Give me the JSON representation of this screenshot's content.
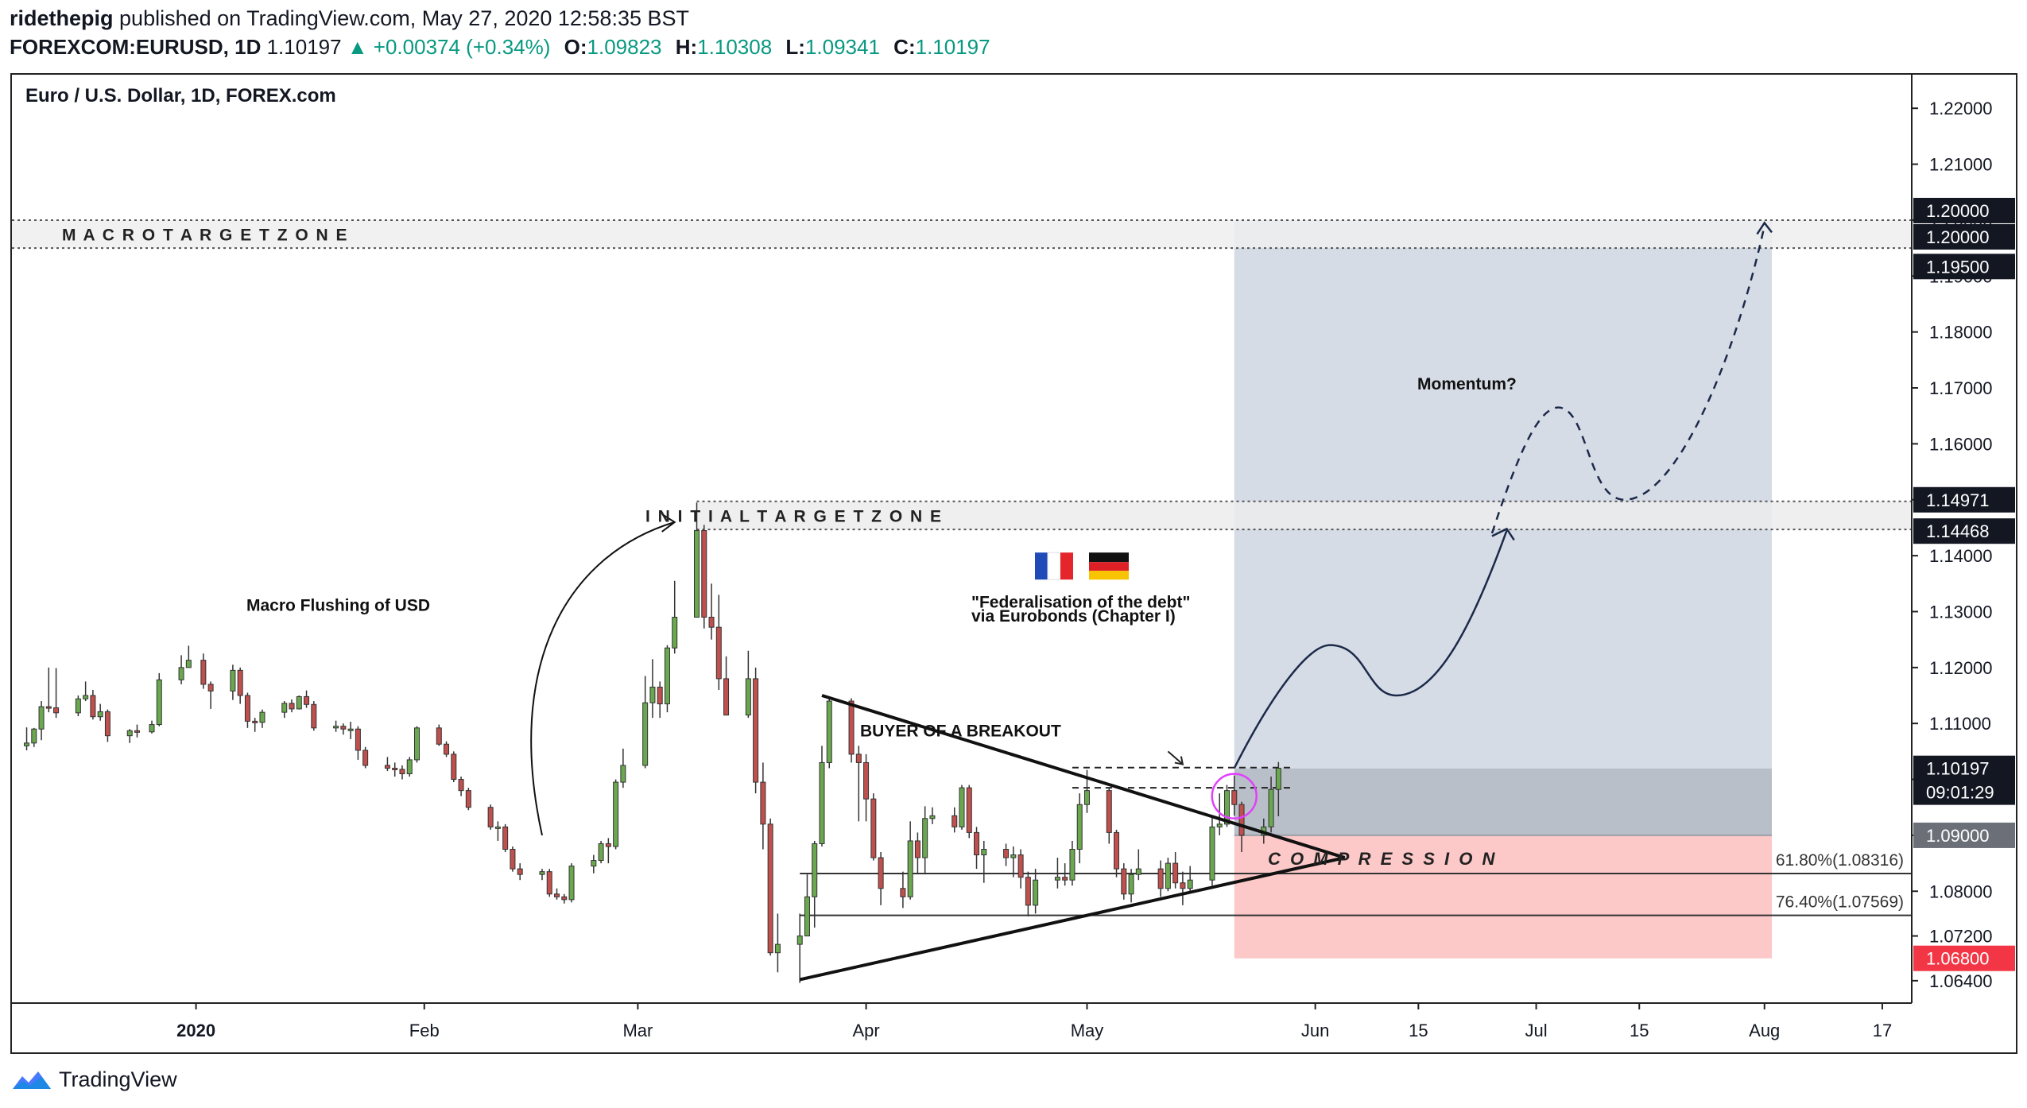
{
  "header": {
    "publisher": "ridethepig",
    "published_text": "published on TradingView.com, May 27, 2020 12:58:35 BST",
    "symbol": "FOREXCOM:EURUSD, 1D",
    "last": "1.10197",
    "change_arrow": "▲",
    "change": "+0.00374 (+0.34%)",
    "o_label": "O:",
    "o_value": "1.09823",
    "h_label": "H:",
    "h_value": "1.10308",
    "l_label": "L:",
    "l_value": "1.09341",
    "c_label": "C:",
    "c_value": "1.10197"
  },
  "footer": {
    "brand": "TradingView",
    "logo_icon": "tradingview-logo-icon"
  },
  "chart_data": {
    "type": "candlestick",
    "title": "Euro / U.S. Dollar, 1D, FOREX.com",
    "ylim": [
      1.06,
      1.226
    ],
    "y_ticks": [
      "1.22000",
      "1.21000",
      "1.20000",
      "1.19000",
      "1.18000",
      "1.17000",
      "1.16000",
      "1.15000",
      "1.14000",
      "1.13000",
      "1.12000",
      "1.11000",
      "1.10000",
      "1.09000",
      "1.08000",
      "1.07200",
      "1.06400"
    ],
    "x_tick_labels": [
      "2020",
      "Feb",
      "Mar",
      "Apr",
      "May",
      "Jun",
      "15",
      "Jul",
      "15",
      "Aug",
      "17"
    ],
    "x_tick_dates": [
      "2020-01-01",
      "2020-02-01",
      "2020-03-01",
      "2020-04-01",
      "2020-05-01",
      "2020-06-01",
      "2020-06-15",
      "2020-07-01",
      "2020-07-15",
      "2020-08-01",
      "2020-08-17"
    ],
    "x_range": [
      "2019-12-07",
      "2020-08-21"
    ],
    "grid": false,
    "colors": {
      "up": "#6aa84f",
      "down": "#c0504d",
      "profit_zone": "#d6dce6",
      "loss_zone": "#fcc8c8",
      "entry_zone": "#b9bfc9",
      "price_label": "#131722",
      "stop_label": "#f23645"
    },
    "price_labels": [
      {
        "value": "1.20000",
        "style": "dark"
      },
      {
        "value": "1.20000",
        "style": "dark"
      },
      {
        "value": "1.19500",
        "style": "dark"
      },
      {
        "value": "1.14971",
        "style": "dark"
      },
      {
        "value": "1.14468",
        "style": "dark"
      },
      {
        "value": "1.10197",
        "style": "dark"
      },
      {
        "value": "09:01:29",
        "style": "dark"
      },
      {
        "value": "1.09000",
        "style": "grey"
      },
      {
        "value": "1.06800",
        "style": "red"
      }
    ],
    "zones": {
      "macro_target_label": "M A C R O     T A R G E T     Z O N E",
      "macro_target_range": [
        1.195,
        1.2
      ],
      "initial_target_label": "I N I T I A L     T A R G E T     Z O N E",
      "initial_target_range": [
        1.14468,
        1.14971
      ],
      "entry": 1.09,
      "stop": 1.068,
      "target": 1.2
    },
    "fib_levels": [
      {
        "label": "61.80%(1.08316)",
        "value": 1.08316
      },
      {
        "label": "76.40%(1.07569)",
        "value": 1.07569
      }
    ],
    "annotations": [
      {
        "text": "Macro Flushing of USD"
      },
      {
        "text": "\"Federalisation of the debt\""
      },
      {
        "text": "via Eurobonds (Chapter I)"
      },
      {
        "text": "BUYER OF A BREAKOUT"
      },
      {
        "text": "Momentum?"
      },
      {
        "text": "C O M P R E S S I O N"
      }
    ],
    "flags": [
      "france-flag-icon",
      "germany-flag-icon"
    ],
    "candles": [
      [
        "2019-12-09",
        1.106,
        1.1093,
        1.1052,
        1.1065
      ],
      [
        "2019-12-10",
        1.1065,
        1.1092,
        1.1058,
        1.109
      ],
      [
        "2019-12-11",
        1.109,
        1.114,
        1.107,
        1.113
      ],
      [
        "2019-12-12",
        1.113,
        1.12,
        1.112,
        1.1128
      ],
      [
        "2019-12-13",
        1.1128,
        1.1199,
        1.111,
        1.1119
      ],
      [
        "2019-12-16",
        1.1119,
        1.115,
        1.1113,
        1.1144
      ],
      [
        "2019-12-17",
        1.1144,
        1.1175,
        1.114,
        1.115
      ],
      [
        "2019-12-18",
        1.115,
        1.116,
        1.1107,
        1.1112
      ],
      [
        "2019-12-19",
        1.1112,
        1.1135,
        1.1105,
        1.1121
      ],
      [
        "2019-12-20",
        1.1121,
        1.1125,
        1.1067,
        1.1078
      ],
      [
        "2019-12-23",
        1.1078,
        1.109,
        1.1065,
        1.1087
      ],
      [
        "2019-12-24",
        1.1087,
        1.1098,
        1.1075,
        1.1085
      ],
      [
        "2019-12-26",
        1.1085,
        1.1105,
        1.1082,
        1.1098
      ],
      [
        "2019-12-27",
        1.1098,
        1.119,
        1.1095,
        1.1178
      ],
      [
        "2019-12-30",
        1.1178,
        1.1222,
        1.117,
        1.12
      ],
      [
        "2019-12-31",
        1.12,
        1.1239,
        1.12,
        1.1213
      ],
      [
        "2020-01-02",
        1.1213,
        1.1225,
        1.1162,
        1.117
      ],
      [
        "2020-01-03",
        1.117,
        1.1175,
        1.1126,
        1.1158
      ],
      [
        "2020-01-06",
        1.1158,
        1.1205,
        1.1142,
        1.1195
      ],
      [
        "2020-01-07",
        1.1195,
        1.12,
        1.1135,
        1.115
      ],
      [
        "2020-01-08",
        1.115,
        1.1155,
        1.1092,
        1.1104
      ],
      [
        "2020-01-09",
        1.1104,
        1.111,
        1.1085,
        1.1102
      ],
      [
        "2020-01-10",
        1.1102,
        1.1125,
        1.1092,
        1.112
      ],
      [
        "2020-01-13",
        1.112,
        1.114,
        1.111,
        1.1136
      ],
      [
        "2020-01-14",
        1.1136,
        1.1143,
        1.112,
        1.1126
      ],
      [
        "2020-01-15",
        1.1126,
        1.115,
        1.1125,
        1.1148
      ],
      [
        "2020-01-16",
        1.1148,
        1.1159,
        1.1128,
        1.1134
      ],
      [
        "2020-01-17",
        1.1134,
        1.114,
        1.1087,
        1.1092
      ],
      [
        "2020-01-20",
        1.1092,
        1.1105,
        1.1085,
        1.1095
      ],
      [
        "2020-01-21",
        1.1095,
        1.11,
        1.108,
        1.109
      ],
      [
        "2020-01-22",
        1.109,
        1.1103,
        1.1072,
        1.109
      ],
      [
        "2020-01-23",
        1.109,
        1.1095,
        1.1035,
        1.1052
      ],
      [
        "2020-01-24",
        1.1052,
        1.1058,
        1.102,
        1.1025
      ],
      [
        "2020-01-27",
        1.1025,
        1.104,
        1.1015,
        1.102
      ],
      [
        "2020-01-28",
        1.102,
        1.103,
        1.1005,
        1.1018
      ],
      [
        "2020-01-29",
        1.1018,
        1.1025,
        1.1,
        1.101
      ],
      [
        "2020-01-30",
        1.101,
        1.104,
        1.1005,
        1.1035
      ],
      [
        "2020-01-31",
        1.1035,
        1.1095,
        1.103,
        1.1092
      ],
      [
        "2020-02-03",
        1.1092,
        1.1098,
        1.106,
        1.1063
      ],
      [
        "2020-02-04",
        1.1063,
        1.1068,
        1.104,
        1.1045
      ],
      [
        "2020-02-05",
        1.1045,
        1.105,
        1.0995,
        1.1
      ],
      [
        "2020-02-06",
        1.1,
        1.1005,
        1.097,
        1.098
      ],
      [
        "2020-02-07",
        1.098,
        1.0985,
        1.0945,
        1.095
      ],
      [
        "2020-02-10",
        1.095,
        1.0955,
        1.091,
        1.0915
      ],
      [
        "2020-02-11",
        1.0915,
        1.0925,
        1.089,
        1.0915
      ],
      [
        "2020-02-12",
        1.0915,
        1.092,
        1.087,
        1.0875
      ],
      [
        "2020-02-13",
        1.0875,
        1.088,
        1.0835,
        1.084
      ],
      [
        "2020-02-14",
        1.084,
        1.085,
        1.082,
        1.083
      ],
      [
        "2020-02-17",
        1.083,
        1.084,
        1.082,
        1.0835
      ],
      [
        "2020-02-18",
        1.0835,
        1.084,
        1.079,
        1.0795
      ],
      [
        "2020-02-19",
        1.0795,
        1.0805,
        1.0785,
        1.079
      ],
      [
        "2020-02-20",
        1.079,
        1.0795,
        1.0778,
        1.0785
      ],
      [
        "2020-02-21",
        1.0785,
        1.085,
        1.078,
        1.0845
      ],
      [
        "2020-02-24",
        1.0845,
        1.0865,
        1.0832,
        1.0855
      ],
      [
        "2020-02-25",
        1.0855,
        1.089,
        1.085,
        1.0885
      ],
      [
        "2020-02-26",
        1.0885,
        1.0895,
        1.085,
        1.088
      ],
      [
        "2020-02-27",
        1.088,
        1.1,
        1.0875,
        1.0995
      ],
      [
        "2020-02-28",
        1.0995,
        1.1055,
        1.0985,
        1.1025
      ],
      [
        "2020-03-02",
        1.1025,
        1.1185,
        1.102,
        1.1137
      ],
      [
        "2020-03-03",
        1.1137,
        1.1215,
        1.111,
        1.1165
      ],
      [
        "2020-03-04",
        1.1165,
        1.1175,
        1.111,
        1.1135
      ],
      [
        "2020-03-05",
        1.1135,
        1.124,
        1.112,
        1.1235
      ],
      [
        "2020-03-06",
        1.1235,
        1.1355,
        1.1225,
        1.129
      ],
      [
        "2020-03-09",
        1.129,
        1.1495,
        1.129,
        1.1445
      ],
      [
        "2020-03-10",
        1.1445,
        1.1455,
        1.127,
        1.129
      ],
      [
        "2020-03-11",
        1.129,
        1.135,
        1.125,
        1.1272
      ],
      [
        "2020-03-12",
        1.1272,
        1.133,
        1.116,
        1.118
      ],
      [
        "2020-03-13",
        1.118,
        1.122,
        1.112,
        1.1115
      ],
      [
        "2020-03-16",
        1.1115,
        1.123,
        1.111,
        1.118
      ],
      [
        "2020-03-17",
        1.118,
        1.12,
        1.0975,
        1.0995
      ],
      [
        "2020-03-18",
        1.0995,
        1.103,
        1.0875,
        1.092
      ],
      [
        "2020-03-19",
        1.092,
        1.093,
        1.0685,
        1.069
      ],
      [
        "2020-03-20",
        1.069,
        1.076,
        1.0655,
        1.0705
      ],
      [
        "2020-03-23",
        1.0705,
        1.076,
        1.0636,
        1.072
      ],
      [
        "2020-03-24",
        1.072,
        1.083,
        1.072,
        1.079
      ],
      [
        "2020-03-25",
        1.079,
        1.089,
        1.0735,
        1.0885
      ],
      [
        "2020-03-26",
        1.0885,
        1.106,
        1.088,
        1.103
      ],
      [
        "2020-03-27",
        1.103,
        1.1147,
        1.102,
        1.114
      ],
      [
        "2020-03-30",
        1.114,
        1.1145,
        1.103,
        1.1045
      ],
      [
        "2020-03-31",
        1.1045,
        1.106,
        1.0925,
        1.103
      ],
      [
        "2020-04-01",
        1.103,
        1.1045,
        1.0925,
        1.0965
      ],
      [
        "2020-04-02",
        1.0965,
        1.0975,
        1.0855,
        1.086
      ],
      [
        "2020-04-03",
        1.086,
        1.087,
        1.0775,
        1.0805
      ],
      [
        "2020-04-06",
        1.0805,
        1.0835,
        1.077,
        1.079
      ],
      [
        "2020-04-07",
        1.079,
        1.0925,
        1.0785,
        1.089
      ],
      [
        "2020-04-08",
        1.089,
        1.0905,
        1.083,
        1.086
      ],
      [
        "2020-04-09",
        1.086,
        1.0952,
        1.083,
        1.093
      ],
      [
        "2020-04-10",
        1.093,
        1.095,
        1.092,
        1.0935
      ],
      [
        "2020-04-13",
        1.0935,
        1.095,
        1.0905,
        1.0915
      ],
      [
        "2020-04-14",
        1.0915,
        1.099,
        1.091,
        1.0985
      ],
      [
        "2020-04-15",
        1.0985,
        1.099,
        1.0895,
        1.0905
      ],
      [
        "2020-04-16",
        1.0905,
        1.0915,
        1.084,
        1.0865
      ],
      [
        "2020-04-17",
        1.0865,
        1.089,
        1.0815,
        1.0875
      ],
      [
        "2020-04-20",
        1.0875,
        1.0885,
        1.0845,
        1.086
      ],
      [
        "2020-04-21",
        1.086,
        1.088,
        1.0825,
        1.0865
      ],
      [
        "2020-04-22",
        1.0865,
        1.0875,
        1.0805,
        1.0825
      ],
      [
        "2020-04-23",
        1.0825,
        1.0835,
        1.0755,
        1.0775
      ],
      [
        "2020-04-24",
        1.0775,
        1.084,
        1.076,
        1.082
      ],
      [
        "2020-04-27",
        1.082,
        1.086,
        1.0805,
        1.0825
      ],
      [
        "2020-04-28",
        1.0825,
        1.085,
        1.081,
        1.082
      ],
      [
        "2020-04-29",
        1.082,
        1.089,
        1.081,
        1.0875
      ],
      [
        "2020-04-30",
        1.0875,
        1.0975,
        1.085,
        1.0955
      ],
      [
        "2020-05-01",
        1.0955,
        1.1017,
        1.094,
        1.098
      ],
      [
        "2020-05-04",
        1.098,
        1.0985,
        1.0885,
        1.0905
      ],
      [
        "2020-05-05",
        1.0905,
        1.091,
        1.0825,
        1.084
      ],
      [
        "2020-05-06",
        1.084,
        1.085,
        1.0785,
        1.0795
      ],
      [
        "2020-05-07",
        1.0795,
        1.084,
        1.078,
        1.083
      ],
      [
        "2020-05-08",
        1.083,
        1.0875,
        1.082,
        1.084
      ],
      [
        "2020-05-11",
        1.084,
        1.0855,
        1.079,
        1.0805
      ],
      [
        "2020-05-12",
        1.0805,
        1.086,
        1.08,
        1.085
      ],
      [
        "2020-05-13",
        1.085,
        1.087,
        1.0805,
        1.0815
      ],
      [
        "2020-05-14",
        1.0815,
        1.0835,
        1.0775,
        1.0805
      ],
      [
        "2020-05-15",
        1.0805,
        1.0845,
        1.08,
        1.082
      ],
      [
        "2020-05-18",
        1.082,
        1.0935,
        1.081,
        1.0915
      ],
      [
        "2020-05-19",
        1.0915,
        1.0975,
        1.09,
        1.092
      ],
      [
        "2020-05-20",
        1.092,
        1.099,
        1.0915,
        1.098
      ],
      [
        "2020-05-21",
        1.098,
        1.1007,
        1.0935,
        1.0955
      ],
      [
        "2020-05-22",
        1.0955,
        1.096,
        1.087,
        1.09
      ],
      [
        "2020-05-25",
        1.09,
        1.093,
        1.0885,
        1.0915
      ],
      [
        "2020-05-26",
        1.0915,
        1.1005,
        1.0905,
        1.0982
      ],
      [
        "2020-05-27",
        1.0982,
        1.1031,
        1.0934,
        1.102
      ]
    ]
  }
}
